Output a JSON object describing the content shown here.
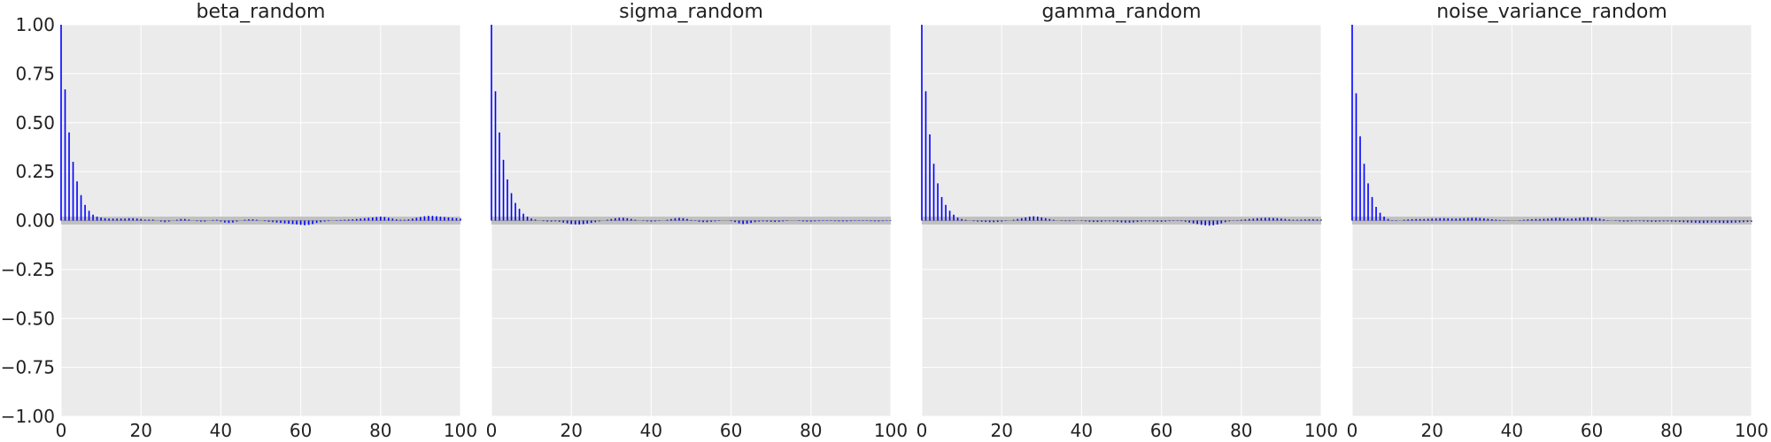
{
  "chart_data": [
    {
      "type": "bar",
      "title": "beta_random",
      "xlabel": "",
      "ylabel": "",
      "xlim": [
        0,
        100
      ],
      "ylim": [
        -1.0,
        1.0
      ],
      "xticks": [
        "0",
        "20",
        "40",
        "60",
        "80",
        "100"
      ],
      "yticks": [
        "1.00",
        "0.75",
        "0.50",
        "0.25",
        "0.00",
        "−0.25",
        "−0.50",
        "−0.75",
        "−1.00"
      ],
      "grid": true,
      "band": [
        -0.02,
        0.02
      ],
      "values": [
        1.0,
        0.67,
        0.45,
        0.3,
        0.2,
        0.13,
        0.08,
        0.05,
        0.03,
        0.02,
        0.015,
        0.012,
        0.01,
        0.01,
        0.01,
        0.01,
        0.01,
        0.012,
        0.012,
        0.01,
        0.008,
        0.005,
        0.005,
        0.005,
        0.0,
        -0.005,
        -0.008,
        -0.005,
        0.0,
        0.004,
        0.008,
        0.008,
        0.005,
        0.0,
        -0.003,
        -0.005,
        -0.005,
        0.0,
        0.003,
        0.004,
        -0.005,
        -0.01,
        -0.012,
        -0.01,
        -0.005,
        0.0,
        0.004,
        0.006,
        0.006,
        0.004,
        0.0,
        -0.003,
        -0.006,
        -0.008,
        -0.01,
        -0.012,
        -0.014,
        -0.016,
        -0.018,
        -0.02,
        -0.022,
        -0.024,
        -0.022,
        -0.018,
        -0.012,
        -0.008,
        -0.005,
        -0.003,
        0.0,
        0.002,
        0.003,
        0.004,
        0.005,
        0.006,
        0.008,
        0.01,
        0.012,
        0.014,
        0.016,
        0.018,
        0.02,
        0.018,
        0.014,
        0.01,
        0.006,
        0.004,
        0.004,
        0.006,
        0.01,
        0.014,
        0.018,
        0.022,
        0.024,
        0.024,
        0.022,
        0.02,
        0.018,
        0.016,
        0.014,
        0.012,
        0.01
      ]
    },
    {
      "type": "bar",
      "title": "sigma_random",
      "xlabel": "",
      "ylabel": "",
      "xlim": [
        0,
        100
      ],
      "ylim": [
        -1.0,
        1.0
      ],
      "xticks": [
        "0",
        "20",
        "40",
        "60",
        "80",
        "100"
      ],
      "grid": true,
      "band": [
        -0.02,
        0.02
      ],
      "values": [
        1.0,
        0.66,
        0.45,
        0.31,
        0.21,
        0.14,
        0.09,
        0.06,
        0.035,
        0.02,
        0.01,
        0.005,
        0.0,
        -0.003,
        -0.005,
        -0.005,
        -0.004,
        -0.006,
        -0.01,
        -0.014,
        -0.018,
        -0.02,
        -0.02,
        -0.018,
        -0.015,
        -0.012,
        -0.008,
        -0.004,
        0.0,
        0.004,
        0.008,
        0.012,
        0.014,
        0.014,
        0.012,
        0.008,
        0.004,
        0.0,
        -0.002,
        -0.004,
        -0.005,
        -0.004,
        -0.002,
        0.0,
        0.004,
        0.008,
        0.012,
        0.014,
        0.012,
        0.008,
        0.003,
        -0.002,
        -0.006,
        -0.008,
        -0.008,
        -0.006,
        -0.004,
        -0.002,
        0.0,
        0.0,
        -0.003,
        -0.008,
        -0.014,
        -0.018,
        -0.016,
        -0.012,
        -0.008,
        -0.005,
        -0.004,
        -0.005,
        -0.006,
        -0.007,
        -0.006,
        -0.004,
        -0.002,
        0.0,
        0.0,
        -0.002,
        -0.004,
        -0.005,
        -0.005,
        -0.004,
        -0.003,
        -0.002,
        -0.002,
        -0.002,
        -0.003,
        -0.004,
        -0.004,
        -0.004,
        -0.003,
        -0.002,
        -0.002,
        -0.002,
        -0.002,
        -0.003,
        -0.004,
        -0.004,
        -0.003,
        -0.002,
        -0.002
      ]
    },
    {
      "type": "bar",
      "title": "gamma_random",
      "xlabel": "",
      "ylabel": "",
      "xlim": [
        0,
        100
      ],
      "ylim": [
        -1.0,
        1.0
      ],
      "xticks": [
        "0",
        "20",
        "40",
        "60",
        "80",
        "100"
      ],
      "grid": true,
      "band": [
        -0.02,
        0.02
      ],
      "values": [
        1.0,
        0.66,
        0.44,
        0.29,
        0.19,
        0.12,
        0.08,
        0.05,
        0.03,
        0.015,
        0.008,
        0.004,
        0.0,
        -0.003,
        -0.005,
        -0.006,
        -0.007,
        -0.008,
        -0.008,
        -0.007,
        -0.005,
        -0.002,
        0.0,
        0.004,
        0.008,
        0.012,
        0.016,
        0.02,
        0.022,
        0.02,
        0.016,
        0.012,
        0.008,
        0.004,
        0.0,
        -0.002,
        -0.003,
        -0.003,
        -0.002,
        0.0,
        -0.002,
        -0.004,
        -0.006,
        -0.007,
        -0.007,
        -0.006,
        -0.004,
        -0.004,
        -0.005,
        -0.007,
        -0.009,
        -0.01,
        -0.01,
        -0.009,
        -0.007,
        -0.005,
        -0.004,
        -0.004,
        -0.005,
        -0.006,
        -0.006,
        -0.005,
        -0.003,
        -0.002,
        -0.002,
        -0.003,
        -0.006,
        -0.01,
        -0.014,
        -0.018,
        -0.022,
        -0.025,
        -0.026,
        -0.024,
        -0.02,
        -0.014,
        -0.008,
        -0.004,
        -0.001,
        0.002,
        0.004,
        0.006,
        0.008,
        0.01,
        0.012,
        0.013,
        0.014,
        0.014,
        0.013,
        0.012,
        0.01,
        0.008,
        0.006,
        0.004,
        0.004,
        0.005,
        0.006,
        0.007,
        0.007,
        0.006,
        0.005
      ]
    },
    {
      "type": "bar",
      "title": "noise_variance_random",
      "xlabel": "",
      "ylabel": "",
      "xlim": [
        0,
        100
      ],
      "ylim": [
        -1.0,
        1.0
      ],
      "xticks": [
        "0",
        "20",
        "40",
        "60",
        "80",
        "100"
      ],
      "grid": true,
      "band": [
        -0.02,
        0.02
      ],
      "values": [
        1.0,
        0.65,
        0.43,
        0.29,
        0.19,
        0.12,
        0.07,
        0.04,
        0.02,
        0.008,
        0.002,
        -0.002,
        0.0,
        0.004,
        0.006,
        0.007,
        0.008,
        0.008,
        0.008,
        0.009,
        0.01,
        0.011,
        0.012,
        0.012,
        0.011,
        0.01,
        0.01,
        0.011,
        0.012,
        0.013,
        0.014,
        0.014,
        0.013,
        0.011,
        0.009,
        0.007,
        0.005,
        0.003,
        0.002,
        0.001,
        0.0,
        0.0,
        0.002,
        0.004,
        0.006,
        0.007,
        0.008,
        0.008,
        0.009,
        0.01,
        0.012,
        0.014,
        0.014,
        0.012,
        0.01,
        0.01,
        0.012,
        0.014,
        0.016,
        0.016,
        0.015,
        0.013,
        0.01,
        0.006,
        0.002,
        0.0,
        -0.002,
        -0.004,
        -0.005,
        -0.005,
        -0.004,
        -0.003,
        -0.003,
        -0.004,
        -0.005,
        -0.006,
        -0.006,
        -0.005,
        -0.004,
        -0.004,
        -0.005,
        -0.006,
        -0.007,
        -0.008,
        -0.009,
        -0.01,
        -0.011,
        -0.012,
        -0.012,
        -0.011,
        -0.01,
        -0.01,
        -0.011,
        -0.012,
        -0.012,
        -0.011,
        -0.01,
        -0.009,
        -0.008,
        -0.007,
        -0.006
      ]
    }
  ],
  "colors": {
    "bar": "#0000ff",
    "axes_bg": "#ebebeb",
    "grid": "#ffffff",
    "band": "#c0c0c0",
    "zero_line": "#a0a0a0",
    "text": "#222222"
  }
}
